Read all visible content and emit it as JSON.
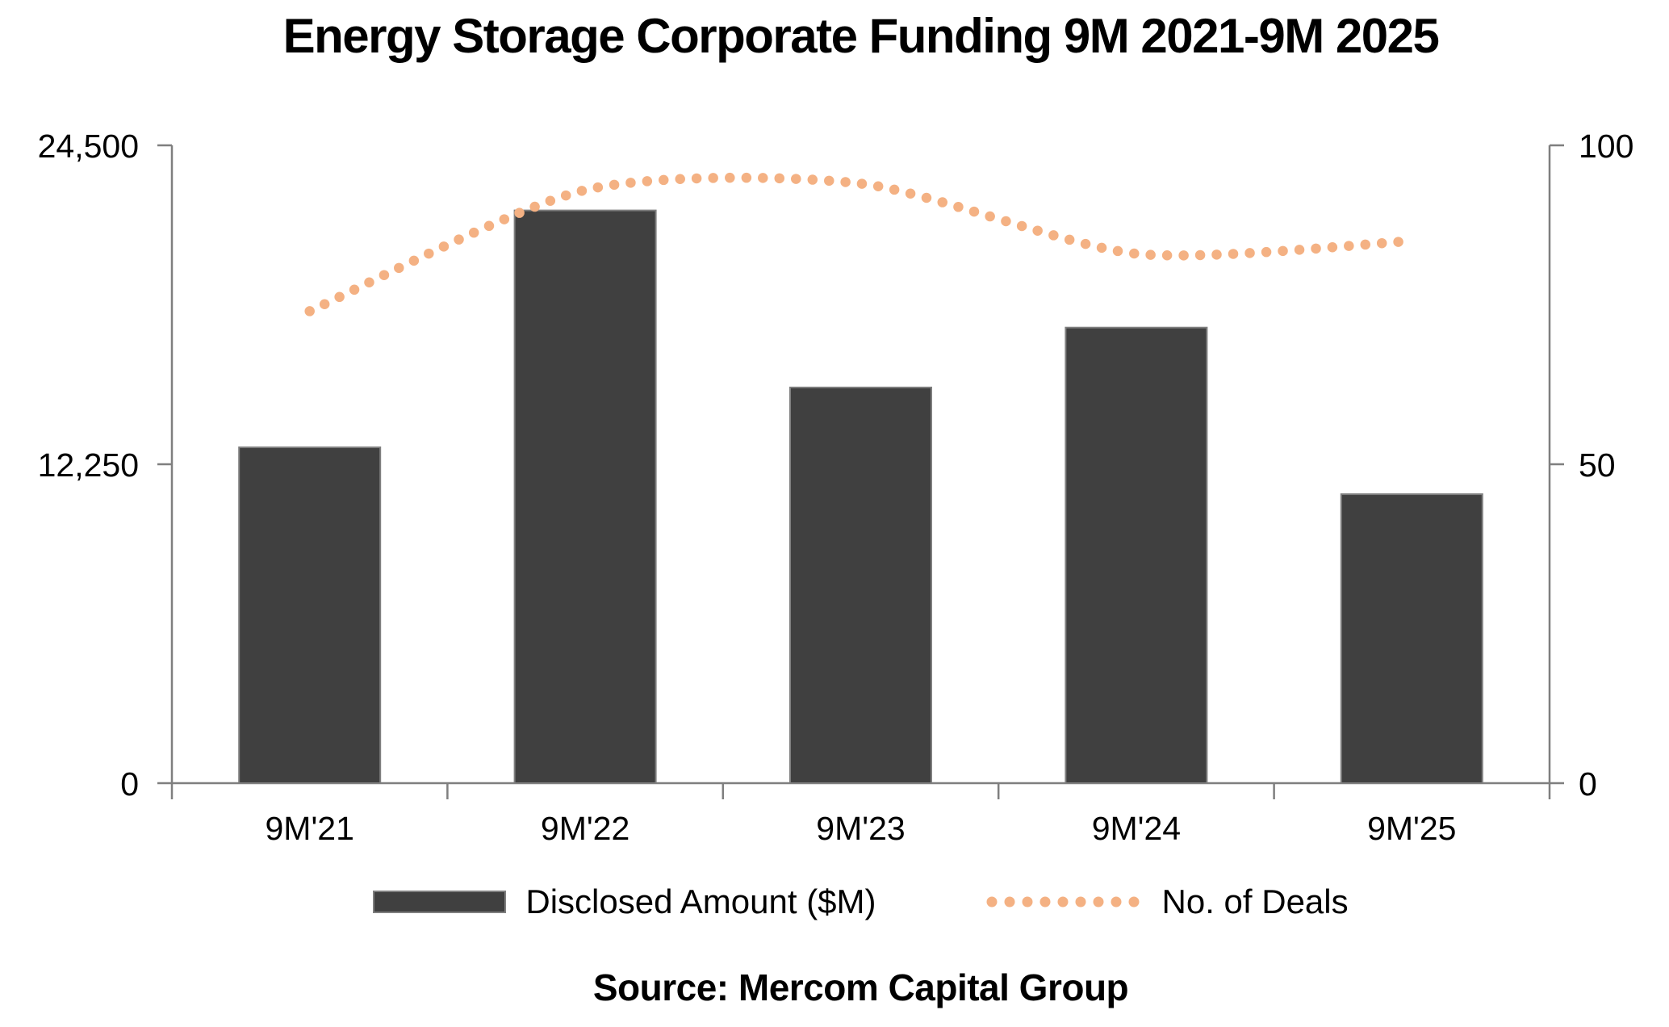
{
  "title": "Energy Storage Corporate Funding 9M 2021-9M 2025",
  "source_caption": "Source: Mercom Capital Group",
  "legend": {
    "items": [
      {
        "label": "Disclosed Amount ($M)",
        "swatch": "bar",
        "color": "#404040"
      },
      {
        "label": "No. of Deals",
        "swatch": "dotted-line",
        "color": "#F4B183"
      }
    ]
  },
  "colors": {
    "bar": "#404040",
    "bar_outline": "#7F7F7F",
    "dots": "#F4B183",
    "axis": "#7F7F7F",
    "text": "#000000",
    "background": "#FFFFFF"
  },
  "chart_data": {
    "type": "bar",
    "title": "Energy Storage Corporate Funding 9M 2021-9M 2025",
    "categories": [
      "9M'21",
      "9M'22",
      "9M'23",
      "9M'24",
      "9M'25"
    ],
    "series": [
      {
        "name": "Disclosed Amount ($M)",
        "type": "bar",
        "axis": "left",
        "color": "#404040",
        "values": [
          12900,
          22000,
          15200,
          17500,
          11100
        ]
      },
      {
        "name": "No. of Deals",
        "type": "dotted-line",
        "axis": "right",
        "color": "#F4B183",
        "values": [
          74,
          93,
          94,
          83,
          85
        ]
      }
    ],
    "left_axis": {
      "min": 0,
      "max": 24500,
      "tick_values": [
        0,
        12250,
        24500
      ],
      "tick_labels": [
        "0",
        "12,250",
        "24,500"
      ]
    },
    "right_axis": {
      "min": 0,
      "max": 100,
      "tick_values": [
        0,
        50,
        100
      ],
      "tick_labels": [
        "0",
        "50",
        "100"
      ]
    },
    "grid": false,
    "legend_position": "bottom",
    "xlabel": "",
    "ylabel_left": "Disclosed Amount ($M)",
    "ylabel_right": "No. of Deals",
    "source": "Source: Mercom Capital Group"
  }
}
